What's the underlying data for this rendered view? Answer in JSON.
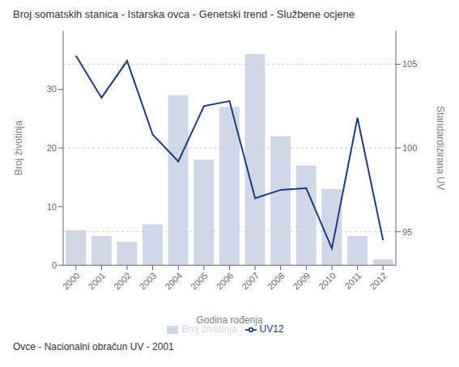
{
  "chart_data": {
    "type": "bar",
    "title": "Broj somatskih stanica - Istarska ovca - Genetski trend - Službene ocjene",
    "xlabel": "Godina rođenja",
    "ylabel": "Broj životinja",
    "y2label": "Standardizirana UV",
    "annotations": [
      "Ovce - Nacionalni obračun UV - 2001"
    ],
    "categories": [
      "2000",
      "2001",
      "2002",
      "2003",
      "2004",
      "2005",
      "2006",
      "2007",
      "2008",
      "2009",
      "2010",
      "2011",
      "2012"
    ],
    "series": [
      {
        "name": "Broj životinja",
        "type": "bar",
        "color": "#d0d8e8",
        "values": [
          6,
          5,
          4,
          7,
          29,
          18,
          27,
          36,
          22,
          17,
          13,
          5,
          1
        ]
      },
      {
        "name": "UV12",
        "type": "line",
        "color": "#1a3a8a",
        "axis": "y2",
        "values": [
          105.5,
          103.0,
          105.2,
          100.8,
          99.2,
          102.5,
          102.8,
          97.0,
          97.5,
          97.6,
          94.0,
          101.8,
          94.5
        ]
      }
    ],
    "ylim": [
      0,
      40
    ],
    "yticks": [
      0,
      10,
      20,
      30
    ],
    "y2lim": [
      93,
      107
    ],
    "y2ticks": [
      95,
      100,
      105
    ],
    "grid": true,
    "legend": "bottom"
  }
}
